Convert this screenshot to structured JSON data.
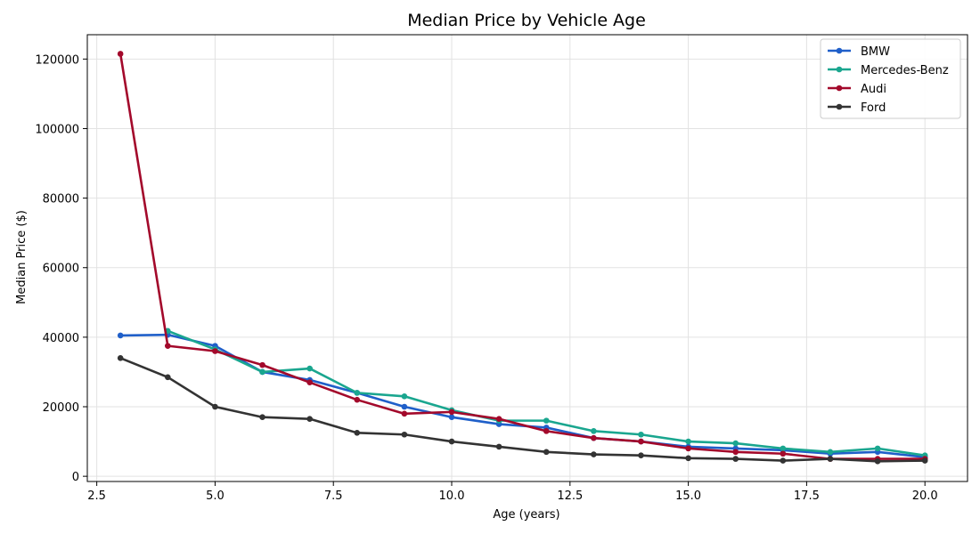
{
  "chart_data": {
    "type": "line",
    "title": "Median Price by Vehicle Age",
    "xlabel": "Age (years)",
    "ylabel": "Median Price ($)",
    "xlim": [
      2.3,
      20.9
    ],
    "ylim": [
      -1500,
      127000
    ],
    "xticks": [
      2.5,
      5.0,
      7.5,
      10.0,
      12.5,
      15.0,
      17.5,
      20.0
    ],
    "xtick_labels": [
      "2.5",
      "5.0",
      "7.5",
      "10.0",
      "12.5",
      "15.0",
      "17.5",
      "20.0"
    ],
    "yticks": [
      0,
      20000,
      40000,
      60000,
      80000,
      100000,
      120000
    ],
    "ytick_labels": [
      "0",
      "20000",
      "40000",
      "60000",
      "80000",
      "100000",
      "120000"
    ],
    "grid": true,
    "legend_position": "top-right",
    "series": [
      {
        "name": "BMW",
        "color": "#1f5fc9",
        "x": [
          3,
          4,
          5,
          6,
          7,
          8,
          9,
          10,
          11,
          12,
          13,
          14,
          15,
          16,
          17,
          18,
          19,
          20
        ],
        "y": [
          40500,
          40700,
          37500,
          30000,
          27700,
          24000,
          20000,
          17000,
          15000,
          14000,
          11000,
          10000,
          8500,
          8000,
          7500,
          6500,
          7000,
          5500
        ]
      },
      {
        "name": "Mercedes-Benz",
        "color": "#1aa68f",
        "x": [
          4,
          5,
          6,
          7,
          8,
          9,
          10,
          11,
          12,
          13,
          14,
          15,
          16,
          17,
          18,
          19,
          20
        ],
        "y": [
          41800,
          36500,
          30000,
          31000,
          24000,
          23000,
          19000,
          16000,
          16000,
          13000,
          12000,
          10000,
          9500,
          8000,
          7000,
          8000,
          6000
        ]
      },
      {
        "name": "Audi",
        "color": "#a3092b",
        "x": [
          3,
          4,
          5,
          6,
          7,
          8,
          9,
          10,
          11,
          12,
          13,
          14,
          15,
          16,
          17,
          18,
          19,
          20
        ],
        "y": [
          121500,
          37500,
          36000,
          32000,
          27000,
          22000,
          18000,
          18500,
          16500,
          13000,
          11000,
          10000,
          8000,
          7000,
          6500,
          5000,
          5000,
          5000
        ]
      },
      {
        "name": "Ford",
        "color": "#333333",
        "x": [
          3,
          4,
          5,
          6,
          7,
          8,
          9,
          10,
          11,
          12,
          13,
          14,
          15,
          16,
          17,
          18,
          19,
          20
        ],
        "y": [
          34000,
          28500,
          20000,
          17000,
          16500,
          12500,
          12000,
          10000,
          8500,
          7000,
          6300,
          6000,
          5200,
          5000,
          4500,
          5000,
          4300,
          4500
        ]
      }
    ]
  }
}
